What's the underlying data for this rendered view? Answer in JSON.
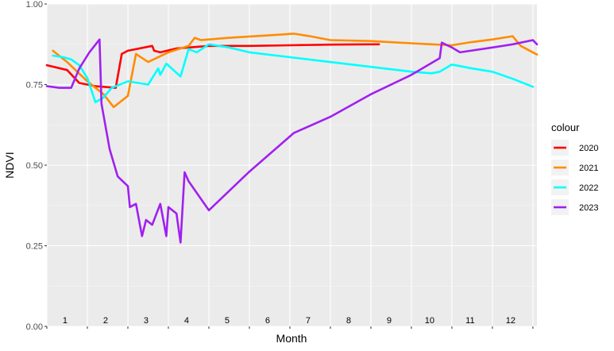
{
  "chart_data": {
    "type": "line",
    "xlabel": "Month",
    "ylabel": "NDVI",
    "xlim": [
      0,
      12.1
    ],
    "ylim": [
      0,
      1
    ],
    "y_ticks": [
      {
        "value": 0,
        "label": "0.00"
      },
      {
        "value": 0.25,
        "label": "0.25"
      },
      {
        "value": 0.5,
        "label": "0.50"
      },
      {
        "value": 0.75,
        "label": "0.75"
      },
      {
        "value": 1,
        "label": "1.00"
      }
    ],
    "month_labels": [
      "1",
      "2",
      "3",
      "4",
      "5",
      "6",
      "7",
      "8",
      "9",
      "10",
      "11",
      "12"
    ],
    "grid": true,
    "legend": {
      "title": "colour",
      "position": "right"
    },
    "series": [
      {
        "name": "2020",
        "color": "#ff0000",
        "points": [
          [
            0,
            0.81
          ],
          [
            0.5,
            0.795
          ],
          [
            0.8,
            0.755
          ],
          [
            1.0,
            0.75
          ],
          [
            1.2,
            0.745
          ],
          [
            1.7,
            0.74
          ],
          [
            1.85,
            0.845
          ],
          [
            2.0,
            0.855
          ],
          [
            2.6,
            0.87
          ],
          [
            2.65,
            0.855
          ],
          [
            2.8,
            0.85
          ],
          [
            3.2,
            0.862
          ],
          [
            3.6,
            0.866
          ],
          [
            4.0,
            0.87
          ],
          [
            5.0,
            0.87
          ],
          [
            6.0,
            0.872
          ],
          [
            7.0,
            0.874
          ],
          [
            8.0,
            0.875
          ],
          [
            8.2,
            0.875
          ]
        ]
      },
      {
        "name": "2021",
        "color": "#ff8c00",
        "points": [
          [
            0.15,
            0.855
          ],
          [
            0.5,
            0.82
          ],
          [
            1.0,
            0.76
          ],
          [
            1.4,
            0.72
          ],
          [
            1.65,
            0.68
          ],
          [
            2.0,
            0.715
          ],
          [
            2.2,
            0.845
          ],
          [
            2.5,
            0.82
          ],
          [
            3.0,
            0.85
          ],
          [
            3.5,
            0.87
          ],
          [
            3.65,
            0.895
          ],
          [
            3.8,
            0.888
          ],
          [
            4.5,
            0.895
          ],
          [
            5.5,
            0.903
          ],
          [
            6.1,
            0.908
          ],
          [
            6.5,
            0.9
          ],
          [
            7.0,
            0.888
          ],
          [
            8.0,
            0.885
          ],
          [
            9.0,
            0.878
          ],
          [
            9.5,
            0.875
          ],
          [
            10.0,
            0.872
          ],
          [
            10.5,
            0.882
          ],
          [
            11.0,
            0.89
          ],
          [
            11.5,
            0.9
          ],
          [
            11.7,
            0.87
          ],
          [
            12.1,
            0.843
          ]
        ]
      },
      {
        "name": "2022",
        "color": "#00ffff",
        "points": [
          [
            0.15,
            0.84
          ],
          [
            0.4,
            0.835
          ],
          [
            0.6,
            0.828
          ],
          [
            0.8,
            0.81
          ],
          [
            1.0,
            0.77
          ],
          [
            1.2,
            0.695
          ],
          [
            1.4,
            0.71
          ],
          [
            1.6,
            0.74
          ],
          [
            2.0,
            0.76
          ],
          [
            2.5,
            0.75
          ],
          [
            2.75,
            0.8
          ],
          [
            2.8,
            0.78
          ],
          [
            2.95,
            0.815
          ],
          [
            3.3,
            0.775
          ],
          [
            3.5,
            0.86
          ],
          [
            3.7,
            0.85
          ],
          [
            4.0,
            0.875
          ],
          [
            4.5,
            0.865
          ],
          [
            5.0,
            0.85
          ],
          [
            6.0,
            0.835
          ],
          [
            7.0,
            0.82
          ],
          [
            8.0,
            0.805
          ],
          [
            9.0,
            0.79
          ],
          [
            9.5,
            0.785
          ],
          [
            9.7,
            0.79
          ],
          [
            10.0,
            0.812
          ],
          [
            10.5,
            0.8
          ],
          [
            11.0,
            0.79
          ],
          [
            11.5,
            0.768
          ],
          [
            12.0,
            0.743
          ]
        ]
      },
      {
        "name": "2023",
        "color": "#a020f0",
        "points": [
          [
            0,
            0.745
          ],
          [
            0.3,
            0.74
          ],
          [
            0.6,
            0.74
          ],
          [
            0.8,
            0.8
          ],
          [
            1.05,
            0.85
          ],
          [
            1.3,
            0.89
          ],
          [
            1.35,
            0.69
          ],
          [
            1.55,
            0.55
          ],
          [
            1.75,
            0.465
          ],
          [
            2.0,
            0.435
          ],
          [
            2.05,
            0.37
          ],
          [
            2.2,
            0.38
          ],
          [
            2.35,
            0.28
          ],
          [
            2.45,
            0.33
          ],
          [
            2.6,
            0.315
          ],
          [
            2.8,
            0.38
          ],
          [
            2.95,
            0.28
          ],
          [
            3.0,
            0.37
          ],
          [
            3.2,
            0.35
          ],
          [
            3.3,
            0.26
          ],
          [
            3.4,
            0.478
          ],
          [
            3.5,
            0.45
          ],
          [
            4.0,
            0.36
          ],
          [
            5.0,
            0.48
          ],
          [
            6.1,
            0.6
          ],
          [
            7.0,
            0.65
          ],
          [
            8.0,
            0.72
          ],
          [
            9.0,
            0.78
          ],
          [
            9.7,
            0.832
          ],
          [
            9.75,
            0.88
          ],
          [
            10.0,
            0.865
          ],
          [
            10.2,
            0.85
          ],
          [
            11.0,
            0.865
          ],
          [
            11.5,
            0.875
          ],
          [
            12.0,
            0.888
          ],
          [
            12.1,
            0.875
          ]
        ]
      }
    ]
  }
}
